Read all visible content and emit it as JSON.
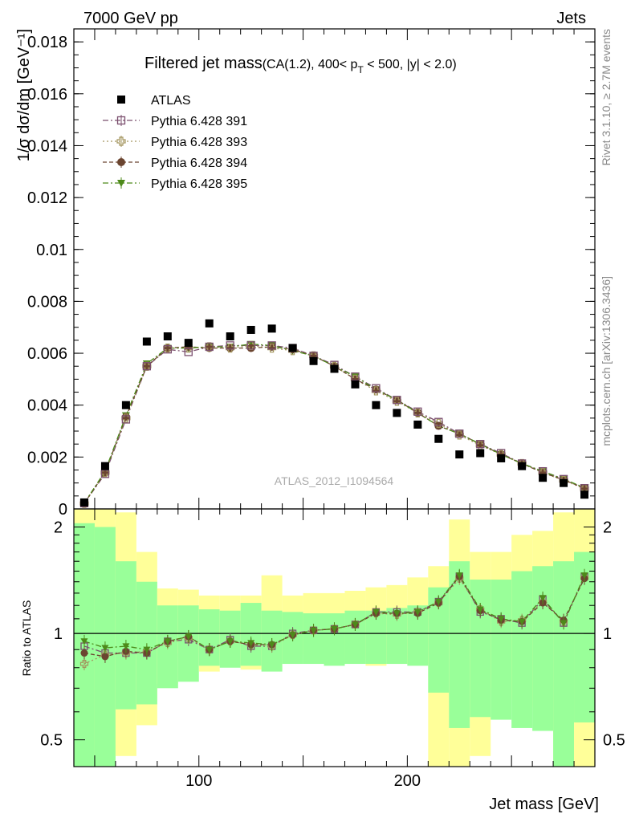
{
  "header": {
    "left": "7000 GeV pp",
    "right": "Jets",
    "side_label_top": "Rivet 3.1.10, ≥ 2.7M events",
    "side_label_bottom": "mcplots.cern.ch [arXiv:1306.3436]",
    "watermark": "ATLAS_2012_I1094564"
  },
  "chart_data": [
    {
      "type": "scatter",
      "title": "Filtered jet mass",
      "subtitle": "(CA(1.2), 400< p_T < 500, |y| < 2.0)",
      "subtitle_parts": {
        "pre": "(CA(1.2), 400< p",
        "sub": "T",
        "post": " < 500, |y| < 2.0)"
      },
      "xlabel": "Jet mass [GeV]",
      "ylabel": "1/σ dσ/dm [GeV⁻¹]",
      "xlim": [
        40,
        290
      ],
      "ylim": [
        0,
        0.0185
      ],
      "y_ticks": [
        {
          "v": 0,
          "label": "0"
        },
        {
          "v": 0.002,
          "label": "0.002"
        },
        {
          "v": 0.004,
          "label": "0.004"
        },
        {
          "v": 0.006,
          "label": "0.006"
        },
        {
          "v": 0.008,
          "label": "0.008"
        },
        {
          "v": 0.01,
          "label": "0.01"
        },
        {
          "v": 0.012,
          "label": "0.012"
        },
        {
          "v": 0.014,
          "label": "0.014"
        },
        {
          "v": 0.016,
          "label": "0.016"
        },
        {
          "v": 0.018,
          "label": "0.018"
        }
      ],
      "legend_position": "top-left",
      "x": [
        45,
        55,
        65,
        75,
        85,
        95,
        105,
        115,
        125,
        135,
        145,
        155,
        165,
        175,
        185,
        195,
        205,
        215,
        225,
        235,
        245,
        255,
        265,
        275,
        285
      ],
      "series": [
        {
          "name": "ATLAS",
          "marker": "filled-square",
          "color": "#000000",
          "values": [
            0.00025,
            0.00165,
            0.004,
            0.00645,
            0.00665,
            0.0064,
            0.00715,
            0.00665,
            0.0069,
            0.00695,
            0.0062,
            0.0057,
            0.0054,
            0.0048,
            0.004,
            0.0037,
            0.00325,
            0.0027,
            0.0021,
            0.00215,
            0.00195,
            0.00165,
            0.0012,
            0.001,
            0.00055
          ]
        },
        {
          "name": "Pythia 6.428 391",
          "marker": "open-square",
          "color": "#7b4f6e",
          "dash": "7,3,2,3",
          "values": [
            0.00022,
            0.00135,
            0.00345,
            0.0055,
            0.00615,
            0.00605,
            0.00625,
            0.0063,
            0.0063,
            0.0063,
            0.0062,
            0.0059,
            0.00555,
            0.0051,
            0.00465,
            0.0042,
            0.00375,
            0.00335,
            0.0029,
            0.0025,
            0.00215,
            0.00175,
            0.00145,
            0.00115,
            0.0008
          ]
        },
        {
          "name": "Pythia 6.428 393",
          "marker": "open-cross",
          "color": "#a3955e",
          "dash": "2,3",
          "values": [
            0.00021,
            0.0014,
            0.0035,
            0.0055,
            0.0062,
            0.0062,
            0.00625,
            0.0062,
            0.0063,
            0.0062,
            0.0061,
            0.0059,
            0.0055,
            0.005,
            0.00455,
            0.00415,
            0.0037,
            0.0033,
            0.00285,
            0.00245,
            0.0021,
            0.00175,
            0.0014,
            0.0011,
            0.00078
          ]
        },
        {
          "name": "Pythia 6.428 394",
          "marker": "filled-circle",
          "color": "#6b4530",
          "dash": "5,3",
          "values": [
            0.00022,
            0.0014,
            0.00355,
            0.0055,
            0.0062,
            0.00625,
            0.0062,
            0.0062,
            0.0062,
            0.00625,
            0.00615,
            0.0059,
            0.0055,
            0.005,
            0.0046,
            0.0042,
            0.0037,
            0.0032,
            0.0029,
            0.0025,
            0.0021,
            0.00175,
            0.0014,
            0.00112,
            0.0008
          ]
        },
        {
          "name": "Pythia 6.428 395",
          "marker": "filled-triangle-down",
          "color": "#4d8a1a",
          "dash": "7,3,2,3",
          "values": [
            0.00023,
            0.00145,
            0.0036,
            0.0056,
            0.0062,
            0.0062,
            0.00625,
            0.00625,
            0.00635,
            0.0063,
            0.0061,
            0.0059,
            0.0055,
            0.0051,
            0.0046,
            0.0042,
            0.0037,
            0.0032,
            0.0029,
            0.0025,
            0.0021,
            0.00175,
            0.00145,
            0.00115,
            0.00082
          ]
        }
      ]
    },
    {
      "type": "scatter",
      "ylabel": "Ratio to ATLAS",
      "xlabel": "Jet mass [GeV]",
      "xlim": [
        40,
        290
      ],
      "ylim": [
        0.42,
        2.25
      ],
      "y_scale": "log",
      "x_ticks": [
        {
          "v": 100,
          "label": "100"
        },
        {
          "v": 200,
          "label": "200"
        }
      ],
      "y_ticks": [
        {
          "v": 0.5,
          "label": "0.5"
        },
        {
          "v": 1,
          "label": "1"
        },
        {
          "v": 2,
          "label": "2"
        }
      ],
      "reference_line": 1,
      "bins": [
        [
          40,
          50
        ],
        [
          50,
          60
        ],
        [
          60,
          70
        ],
        [
          70,
          80
        ],
        [
          80,
          90
        ],
        [
          90,
          100
        ],
        [
          100,
          110
        ],
        [
          110,
          120
        ],
        [
          120,
          130
        ],
        [
          130,
          140
        ],
        [
          140,
          150
        ],
        [
          150,
          160
        ],
        [
          160,
          170
        ],
        [
          170,
          180
        ],
        [
          180,
          190
        ],
        [
          190,
          200
        ],
        [
          200,
          210
        ],
        [
          210,
          220
        ],
        [
          220,
          230
        ],
        [
          230,
          240
        ],
        [
          240,
          250
        ],
        [
          250,
          260
        ],
        [
          260,
          270
        ],
        [
          270,
          280
        ],
        [
          280,
          290
        ]
      ],
      "band_inner": {
        "color": "#99ff99",
        "low": [
          0.42,
          0.42,
          0.61,
          0.63,
          0.7,
          0.73,
          0.81,
          0.8,
          0.81,
          0.78,
          0.82,
          0.82,
          0.81,
          0.82,
          0.82,
          0.82,
          0.81,
          0.68,
          0.54,
          0.58,
          0.57,
          0.54,
          0.53,
          0.42,
          0.56
        ],
        "high": [
          2.05,
          2.0,
          1.6,
          1.4,
          1.2,
          1.2,
          1.17,
          1.16,
          1.22,
          1.16,
          1.15,
          1.14,
          1.14,
          1.16,
          1.16,
          1.18,
          1.2,
          1.35,
          1.6,
          1.42,
          1.42,
          1.5,
          1.55,
          1.6,
          1.7
        ]
      },
      "band_outer": {
        "color": "#ffff99",
        "low": [
          0.42,
          0.42,
          0.42,
          0.42,
          0.42,
          0.42,
          0.42,
          0.42,
          0.42,
          0.42,
          0.42,
          0.42,
          0.42,
          0.42,
          0.42,
          0.42,
          0.42,
          0.42,
          0.42,
          0.42,
          0.42,
          0.42,
          0.42,
          0.42,
          0.42
        ],
        "high": [
          2.25,
          2.25,
          2.2,
          1.7,
          1.34,
          1.33,
          1.28,
          1.28,
          1.28,
          1.46,
          1.28,
          1.3,
          1.3,
          1.32,
          1.35,
          1.37,
          1.44,
          1.55,
          2.1,
          1.7,
          1.7,
          1.9,
          1.95,
          2.2,
          2.25
        ]
      },
      "band_outer_low": [
        0.42,
        0.42,
        0.45,
        0.55,
        0.72,
        0.88,
        0.78,
        0.84,
        0.79,
        0.79,
        0.84,
        0.87,
        0.84,
        0.85,
        0.81,
        0.82,
        0.82,
        0.42,
        0.42,
        0.45,
        0.7,
        0.65,
        0.62,
        0.42,
        0.42
      ],
      "x": [
        45,
        55,
        65,
        75,
        85,
        95,
        105,
        115,
        125,
        135,
        145,
        155,
        165,
        175,
        185,
        195,
        205,
        215,
        225,
        235,
        245,
        255,
        265,
        275,
        285
      ],
      "series": [
        {
          "name": "Pythia 6.428 391",
          "color": "#7b4f6e",
          "marker": "open-square",
          "dash": "7,3,2,3",
          "values": [
            0.92,
            0.88,
            0.88,
            0.88,
            0.95,
            0.96,
            0.9,
            0.96,
            0.92,
            0.92,
            1.0,
            1.02,
            1.03,
            1.06,
            1.15,
            1.15,
            1.15,
            1.23,
            1.45,
            1.15,
            1.1,
            1.07,
            1.25,
            1.07,
            1.45
          ]
        },
        {
          "name": "Pythia 6.428 393",
          "color": "#a3955e",
          "marker": "open-cross",
          "dash": "2,3",
          "values": [
            0.82,
            0.87,
            0.88,
            0.89,
            0.94,
            0.97,
            0.9,
            0.95,
            0.93,
            0.92,
            0.99,
            1.02,
            1.03,
            1.06,
            1.14,
            1.13,
            1.15,
            1.22,
            1.43,
            1.17,
            1.08,
            1.09,
            1.23,
            1.08,
            1.44
          ]
        },
        {
          "name": "Pythia 6.428 394",
          "color": "#6b4530",
          "marker": "filled-circle",
          "dash": "5,3",
          "values": [
            0.88,
            0.86,
            0.89,
            0.88,
            0.95,
            0.98,
            0.9,
            0.95,
            0.93,
            0.93,
            0.99,
            1.02,
            1.03,
            1.06,
            1.14,
            1.14,
            1.14,
            1.22,
            1.45,
            1.16,
            1.09,
            1.08,
            1.22,
            1.09,
            1.43
          ]
        },
        {
          "name": "Pythia 6.428 395",
          "color": "#4d8a1a",
          "marker": "filled-triangle-down",
          "dash": "7,3,2,3",
          "values": [
            0.95,
            0.91,
            0.92,
            0.9,
            0.95,
            0.98,
            0.9,
            0.95,
            0.94,
            0.93,
            0.99,
            1.02,
            1.03,
            1.06,
            1.15,
            1.14,
            1.15,
            1.23,
            1.46,
            1.17,
            1.1,
            1.08,
            1.26,
            1.07,
            1.46
          ]
        }
      ]
    }
  ]
}
